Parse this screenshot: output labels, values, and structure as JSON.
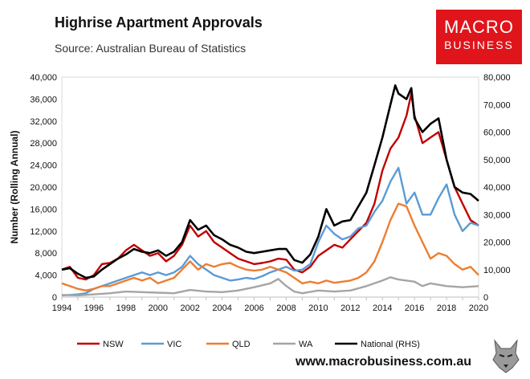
{
  "header": {
    "title": "Highrise Apartment Approvals",
    "source": "Source: Australian Bureau of Statistics"
  },
  "logo": {
    "line1": "MACRO",
    "line2": "BUSINESS",
    "color": "#e0141b"
  },
  "website": "www.macrobusiness.com.au",
  "chart_data": {
    "type": "line",
    "title": "Highrise Apartment Approvals",
    "xlabel": "",
    "ylabel": "Number (Rolling Annual)",
    "xlim": [
      1994,
      2020
    ],
    "ylim_left": [
      0,
      40000
    ],
    "ylim_right": [
      0,
      80000
    ],
    "x_ticks": [
      "1994",
      "1996",
      "1998",
      "2000",
      "2002",
      "2004",
      "2006",
      "2008",
      "2010",
      "2012",
      "2014",
      "2016",
      "2018",
      "2020"
    ],
    "y_ticks_left": [
      "0",
      "4,000",
      "8,000",
      "12,000",
      "16,000",
      "20,000",
      "24,000",
      "28,000",
      "32,000",
      "36,000",
      "40,000"
    ],
    "y_ticks_right": [
      "0",
      "10,000",
      "20,000",
      "30,000",
      "40,000",
      "50,000",
      "60,000",
      "70,000",
      "80,000"
    ],
    "legend_position": "bottom",
    "series": [
      {
        "name": "NSW",
        "axis": "left",
        "color": "#c00000",
        "points": [
          [
            1994,
            5000
          ],
          [
            1994.5,
            5500
          ],
          [
            1995,
            3500
          ],
          [
            1995.5,
            3200
          ],
          [
            1996,
            4000
          ],
          [
            1996.5,
            6000
          ],
          [
            1997,
            6200
          ],
          [
            1997.5,
            7000
          ],
          [
            1998,
            8500
          ],
          [
            1998.5,
            9500
          ],
          [
            1999,
            8500
          ],
          [
            1999.5,
            7500
          ],
          [
            2000,
            8000
          ],
          [
            2000.5,
            6500
          ],
          [
            2001,
            7500
          ],
          [
            2001.5,
            9500
          ],
          [
            2002,
            13000
          ],
          [
            2002.5,
            11000
          ],
          [
            2003,
            12000
          ],
          [
            2003.5,
            10000
          ],
          [
            2004,
            9000
          ],
          [
            2004.5,
            8000
          ],
          [
            2005,
            7000
          ],
          [
            2005.5,
            6500
          ],
          [
            2006,
            6000
          ],
          [
            2006.5,
            6200
          ],
          [
            2007,
            6500
          ],
          [
            2007.5,
            7000
          ],
          [
            2008,
            6800
          ],
          [
            2008.5,
            5000
          ],
          [
            2009,
            4500
          ],
          [
            2009.5,
            5500
          ],
          [
            2010,
            7500
          ],
          [
            2010.5,
            8500
          ],
          [
            2011,
            9500
          ],
          [
            2011.5,
            9000
          ],
          [
            2012,
            10500
          ],
          [
            2012.5,
            12000
          ],
          [
            2013,
            13500
          ],
          [
            2013.5,
            17000
          ],
          [
            2014,
            23000
          ],
          [
            2014.5,
            27000
          ],
          [
            2015,
            29000
          ],
          [
            2015.5,
            33000
          ],
          [
            2015.8,
            37000
          ],
          [
            2016,
            33000
          ],
          [
            2016.5,
            28000
          ],
          [
            2017,
            29000
          ],
          [
            2017.5,
            30000
          ],
          [
            2018,
            25000
          ],
          [
            2018.5,
            20000
          ],
          [
            2019,
            17000
          ],
          [
            2019.5,
            14000
          ],
          [
            2020,
            13000
          ]
        ]
      },
      {
        "name": "VIC",
        "axis": "left",
        "color": "#5b9bd5",
        "points": [
          [
            1994,
            300
          ],
          [
            1994.5,
            400
          ],
          [
            1995,
            500
          ],
          [
            1995.5,
            700
          ],
          [
            1996,
            1500
          ],
          [
            1996.5,
            2000
          ],
          [
            1997,
            2500
          ],
          [
            1997.5,
            3000
          ],
          [
            1998,
            3500
          ],
          [
            1998.5,
            4000
          ],
          [
            1999,
            4500
          ],
          [
            1999.5,
            4000
          ],
          [
            2000,
            4500
          ],
          [
            2000.5,
            4000
          ],
          [
            2001,
            4500
          ],
          [
            2001.5,
            5500
          ],
          [
            2002,
            7500
          ],
          [
            2002.5,
            6000
          ],
          [
            2003,
            5000
          ],
          [
            2003.5,
            4000
          ],
          [
            2004,
            3500
          ],
          [
            2004.5,
            3000
          ],
          [
            2005,
            3200
          ],
          [
            2005.5,
            3500
          ],
          [
            2006,
            3300
          ],
          [
            2006.5,
            3800
          ],
          [
            2007,
            4500
          ],
          [
            2007.5,
            5000
          ],
          [
            2008,
            5500
          ],
          [
            2008.5,
            4800
          ],
          [
            2009,
            5000
          ],
          [
            2009.5,
            6000
          ],
          [
            2010,
            10000
          ],
          [
            2010.5,
            13000
          ],
          [
            2011,
            11500
          ],
          [
            2011.5,
            10500
          ],
          [
            2012,
            11000
          ],
          [
            2012.5,
            12500
          ],
          [
            2013,
            13000
          ],
          [
            2013.5,
            15500
          ],
          [
            2014,
            17500
          ],
          [
            2014.5,
            21000
          ],
          [
            2015,
            23500
          ],
          [
            2015.5,
            17000
          ],
          [
            2016,
            19000
          ],
          [
            2016.5,
            15000
          ],
          [
            2017,
            15000
          ],
          [
            2017.5,
            18000
          ],
          [
            2018,
            20500
          ],
          [
            2018.5,
            15000
          ],
          [
            2019,
            12000
          ],
          [
            2019.5,
            13500
          ],
          [
            2020,
            13000
          ]
        ]
      },
      {
        "name": "QLD",
        "axis": "left",
        "color": "#ed7d31",
        "points": [
          [
            1994,
            2500
          ],
          [
            1994.5,
            2000
          ],
          [
            1995,
            1500
          ],
          [
            1995.5,
            1200
          ],
          [
            1996,
            1500
          ],
          [
            1996.5,
            2000
          ],
          [
            1997,
            2000
          ],
          [
            1997.5,
            2500
          ],
          [
            1998,
            3000
          ],
          [
            1998.5,
            3500
          ],
          [
            1999,
            3000
          ],
          [
            1999.5,
            3500
          ],
          [
            2000,
            2500
          ],
          [
            2000.5,
            3000
          ],
          [
            2001,
            3500
          ],
          [
            2001.5,
            5000
          ],
          [
            2002,
            6500
          ],
          [
            2002.5,
            5000
          ],
          [
            2003,
            6000
          ],
          [
            2003.5,
            5500
          ],
          [
            2004,
            6000
          ],
          [
            2004.5,
            6200
          ],
          [
            2005,
            5500
          ],
          [
            2005.5,
            5000
          ],
          [
            2006,
            4800
          ],
          [
            2006.5,
            5000
          ],
          [
            2007,
            5500
          ],
          [
            2007.5,
            5000
          ],
          [
            2008,
            4500
          ],
          [
            2008.5,
            3500
          ],
          [
            2009,
            2500
          ],
          [
            2009.5,
            2800
          ],
          [
            2010,
            2500
          ],
          [
            2010.5,
            3000
          ],
          [
            2011,
            2600
          ],
          [
            2011.5,
            2800
          ],
          [
            2012,
            3000
          ],
          [
            2012.5,
            3500
          ],
          [
            2013,
            4500
          ],
          [
            2013.5,
            6500
          ],
          [
            2014,
            10000
          ],
          [
            2014.5,
            14000
          ],
          [
            2015,
            17000
          ],
          [
            2015.5,
            16500
          ],
          [
            2016,
            13000
          ],
          [
            2016.5,
            10000
          ],
          [
            2017,
            7000
          ],
          [
            2017.5,
            8000
          ],
          [
            2018,
            7500
          ],
          [
            2018.5,
            6000
          ],
          [
            2019,
            5000
          ],
          [
            2019.5,
            5500
          ],
          [
            2020,
            4000
          ]
        ]
      },
      {
        "name": "WA",
        "axis": "left",
        "color": "#a5a5a5",
        "points": [
          [
            1994,
            400
          ],
          [
            1995,
            300
          ],
          [
            1996,
            500
          ],
          [
            1997,
            700
          ],
          [
            1998,
            1000
          ],
          [
            1999,
            900
          ],
          [
            2000,
            800
          ],
          [
            2001,
            700
          ],
          [
            2002,
            1300
          ],
          [
            2003,
            1000
          ],
          [
            2004,
            900
          ],
          [
            2005,
            1200
          ],
          [
            2006,
            1800
          ],
          [
            2007,
            2500
          ],
          [
            2007.5,
            3300
          ],
          [
            2008,
            2000
          ],
          [
            2008.5,
            1000
          ],
          [
            2009,
            700
          ],
          [
            2010,
            1200
          ],
          [
            2011,
            1000
          ],
          [
            2012,
            1200
          ],
          [
            2013,
            2000
          ],
          [
            2014,
            3000
          ],
          [
            2014.5,
            3600
          ],
          [
            2015,
            3200
          ],
          [
            2016,
            2800
          ],
          [
            2016.5,
            2000
          ],
          [
            2017,
            2500
          ],
          [
            2018,
            2000
          ],
          [
            2019,
            1800
          ],
          [
            2020,
            2000
          ]
        ]
      },
      {
        "name": "National (RHS)",
        "axis": "right",
        "color": "#000000",
        "points": [
          [
            1994,
            10000
          ],
          [
            1994.5,
            10500
          ],
          [
            1995,
            8500
          ],
          [
            1995.5,
            7000
          ],
          [
            1996,
            7500
          ],
          [
            1996.5,
            10000
          ],
          [
            1997,
            12000
          ],
          [
            1997.5,
            14000
          ],
          [
            1998,
            15500
          ],
          [
            1998.5,
            17500
          ],
          [
            1999,
            16500
          ],
          [
            1999.5,
            16000
          ],
          [
            2000,
            17000
          ],
          [
            2000.5,
            15000
          ],
          [
            2001,
            16500
          ],
          [
            2001.5,
            20000
          ],
          [
            2002,
            28000
          ],
          [
            2002.5,
            24500
          ],
          [
            2003,
            26000
          ],
          [
            2003.5,
            22500
          ],
          [
            2004,
            21000
          ],
          [
            2004.5,
            19000
          ],
          [
            2005,
            18000
          ],
          [
            2005.5,
            16500
          ],
          [
            2006,
            16000
          ],
          [
            2006.5,
            16500
          ],
          [
            2007,
            17000
          ],
          [
            2007.5,
            17500
          ],
          [
            2008,
            17500
          ],
          [
            2008.5,
            13500
          ],
          [
            2009,
            12500
          ],
          [
            2009.5,
            15500
          ],
          [
            2010,
            22000
          ],
          [
            2010.5,
            32000
          ],
          [
            2011,
            26000
          ],
          [
            2011.5,
            27500
          ],
          [
            2012,
            28000
          ],
          [
            2012.5,
            33000
          ],
          [
            2013,
            38000
          ],
          [
            2013.5,
            48000
          ],
          [
            2014,
            58000
          ],
          [
            2014.5,
            70000
          ],
          [
            2014.8,
            77000
          ],
          [
            2015,
            74000
          ],
          [
            2015.5,
            72000
          ],
          [
            2015.8,
            76000
          ],
          [
            2016,
            65000
          ],
          [
            2016.5,
            60000
          ],
          [
            2017,
            63000
          ],
          [
            2017.5,
            65000
          ],
          [
            2018,
            50000
          ],
          [
            2018.5,
            40000
          ],
          [
            2019,
            38000
          ],
          [
            2019.5,
            37500
          ],
          [
            2020,
            35000
          ]
        ]
      }
    ]
  }
}
